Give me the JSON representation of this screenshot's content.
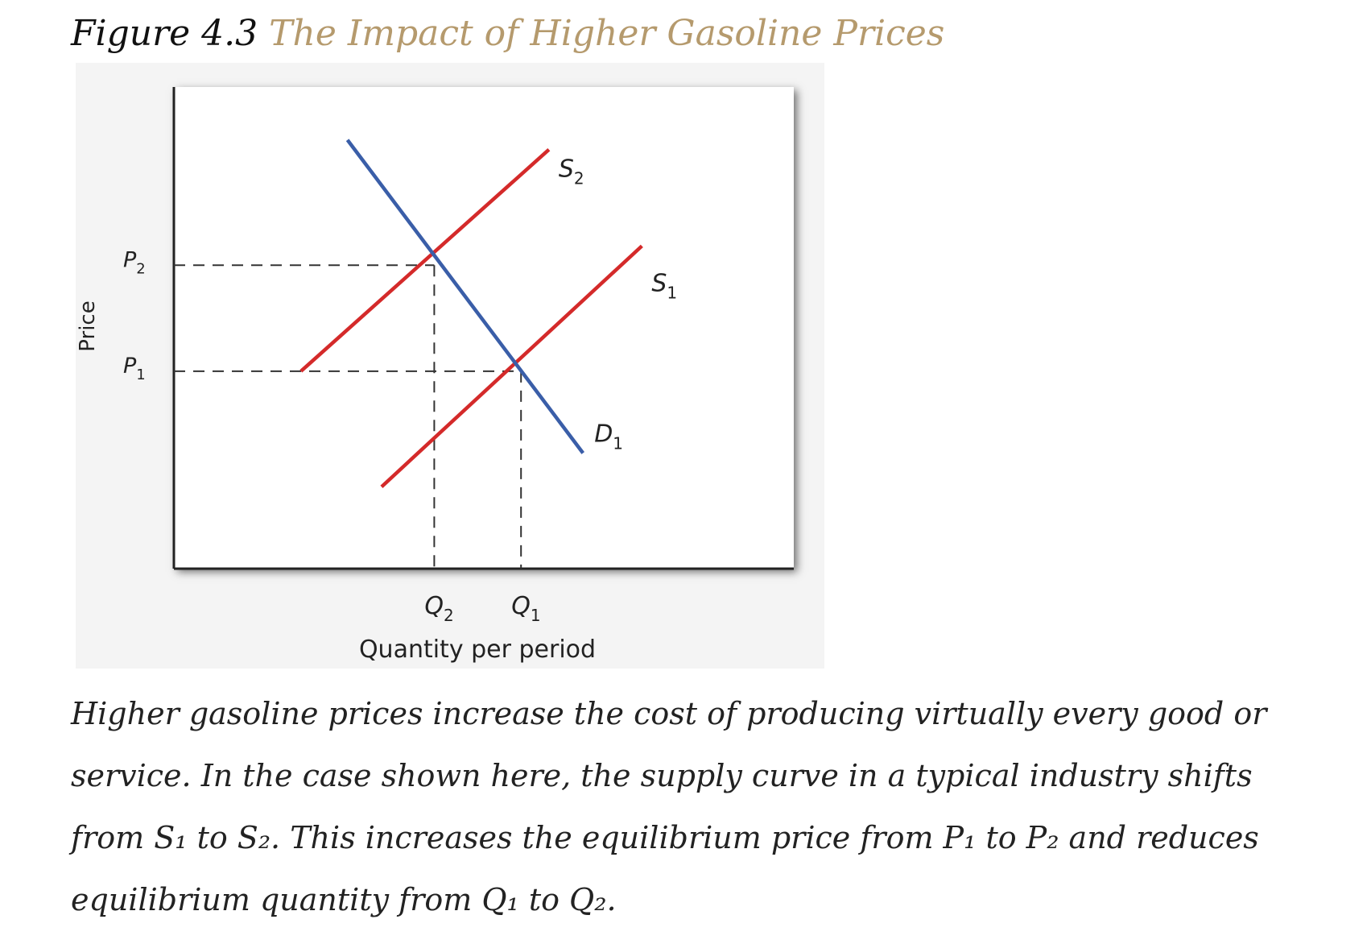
{
  "figure": {
    "number": "Figure 4.3",
    "title": "The Impact of Higher Gasoline Prices"
  },
  "colors": {
    "supply": "#d42a2a",
    "demand": "#3a5ea8",
    "axis": "#222222",
    "title_accent": "#b59a6d",
    "panel_background": "#f4f4f4"
  },
  "chart_data": {
    "type": "line",
    "title": "",
    "xlabel": "Quantity per period",
    "ylabel": "Price",
    "xlim": [
      0,
      10
    ],
    "ylim": [
      0,
      10
    ],
    "x_ticks": [
      {
        "label": "Q",
        "sub": "2",
        "value": 4.2
      },
      {
        "label": "Q",
        "sub": "1",
        "value": 5.6
      }
    ],
    "y_ticks": [
      {
        "label": "P",
        "sub": "2",
        "value": 6.3
      },
      {
        "label": "P",
        "sub": "1",
        "value": 4.1
      }
    ],
    "grid": false,
    "legend": "none",
    "series": [
      {
        "name": "S",
        "sub": "2",
        "kind": "supply",
        "points": [
          [
            2.05,
            4.1
          ],
          [
            6.05,
            8.7
          ]
        ]
      },
      {
        "name": "S",
        "sub": "1",
        "kind": "supply",
        "points": [
          [
            3.35,
            1.7
          ],
          [
            7.55,
            6.7
          ]
        ]
      },
      {
        "name": "D",
        "sub": "1",
        "kind": "demand",
        "points": [
          [
            2.8,
            8.9
          ],
          [
            6.6,
            2.4
          ]
        ]
      }
    ],
    "equilibria": [
      {
        "x": 4.2,
        "y": 6.3
      },
      {
        "x": 5.6,
        "y": 4.1
      }
    ]
  },
  "caption": {
    "text": "Higher gasoline prices increase the cost of producing virtually every good or service. In the case shown here, the supply curve in a typical industry shifts from S₁ to S₂. This increases the equilibrium price from P₁ to P₂ and reduces equilibrium quantity from Q₁ to Q₂."
  }
}
